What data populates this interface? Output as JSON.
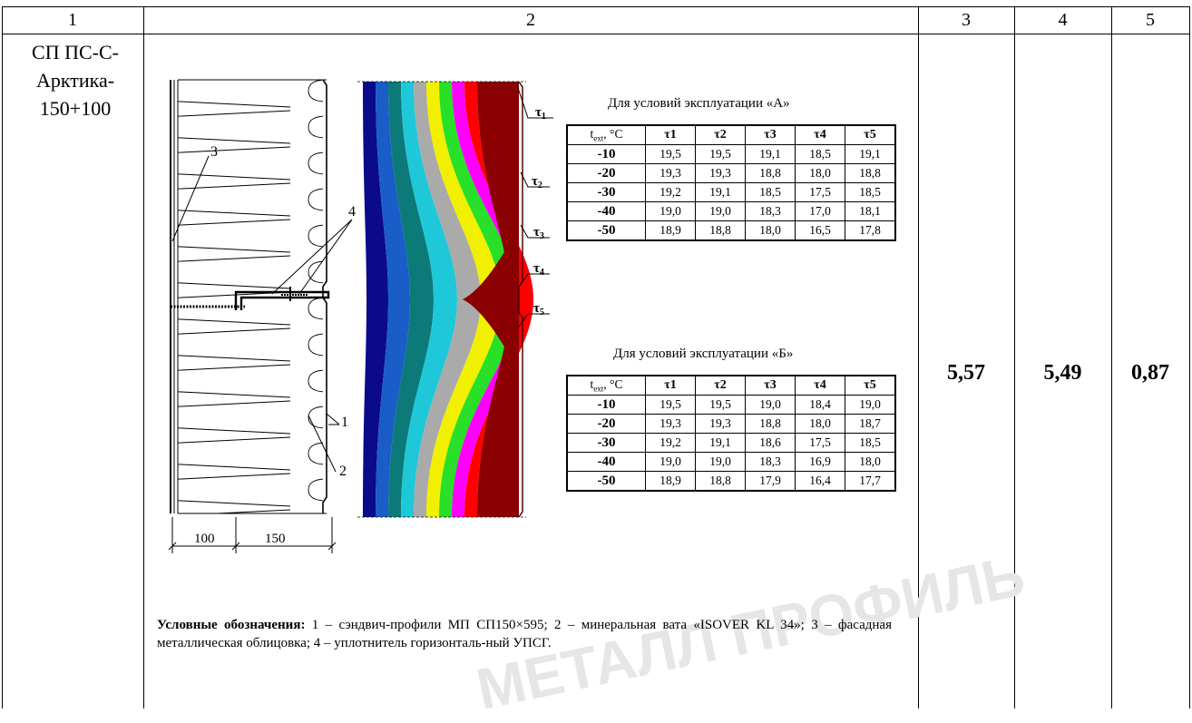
{
  "header": {
    "cols": [
      "1",
      "2",
      "3",
      "4",
      "5"
    ]
  },
  "row": {
    "label": [
      "СП ПС-С-",
      "Арктика-",
      "150+100"
    ],
    "col3": "5,57",
    "col4": "5,49",
    "col5": "0,87"
  },
  "drawing": {
    "callouts": [
      "3",
      "4",
      "1",
      "2"
    ],
    "dims": [
      "100",
      "150"
    ],
    "tau_labels": [
      "τ1",
      "τ2",
      "τ3",
      "τ4",
      "τ5"
    ],
    "bands": [
      "#0a0a8a",
      "#1a5cc8",
      "#0d7a7a",
      "#1ec8d8",
      "#aaaaaa",
      "#f0f000",
      "#28e028",
      "#ff00ff",
      "#ff0000",
      "#8b0000"
    ]
  },
  "condA": {
    "title": "Для условий эксплуатации «А»",
    "head": [
      "t",
      "ext",
      ", °С",
      "τ1",
      "τ2",
      "τ3",
      "τ4",
      "τ5"
    ],
    "rows": [
      [
        "-10",
        "19,5",
        "19,5",
        "19,1",
        "18,5",
        "19,1"
      ],
      [
        "-20",
        "19,3",
        "19,3",
        "18,8",
        "18,0",
        "18,8"
      ],
      [
        "-30",
        "19,2",
        "19,1",
        "18,5",
        "17,5",
        "18,5"
      ],
      [
        "-40",
        "19,0",
        "19,0",
        "18,3",
        "17,0",
        "18,1"
      ],
      [
        "-50",
        "18,9",
        "18,8",
        "18,0",
        "16,5",
        "17,8"
      ]
    ]
  },
  "condB": {
    "title": "Для условий эксплуатации «Б»",
    "head": [
      "t",
      "ext",
      ", °С",
      "τ1",
      "τ2",
      "τ3",
      "τ4",
      "τ5"
    ],
    "rows": [
      [
        "-10",
        "19,5",
        "19,5",
        "19,0",
        "18,4",
        "19,0"
      ],
      [
        "-20",
        "19,3",
        "19,3",
        "18,8",
        "18,0",
        "18,7"
      ],
      [
        "-30",
        "19,2",
        "19,1",
        "18,6",
        "17,5",
        "18,5"
      ],
      [
        "-40",
        "19,0",
        "19,0",
        "18,3",
        "16,9",
        "18,0"
      ],
      [
        "-50",
        "18,9",
        "18,8",
        "17,9",
        "16,4",
        "17,7"
      ]
    ]
  },
  "legend": {
    "bold": "Условные обозначения:",
    "text": " 1 – сэндвич-профили МП СП150×595; 2 – минеральная вата «ISOVER KL 34»; 3 – фасадная металлическая облицовка; 4 – уплотнитель горизонталь-ный УПСГ."
  },
  "watermark": "МЕТАЛЛ ПРОФИЛЬ"
}
